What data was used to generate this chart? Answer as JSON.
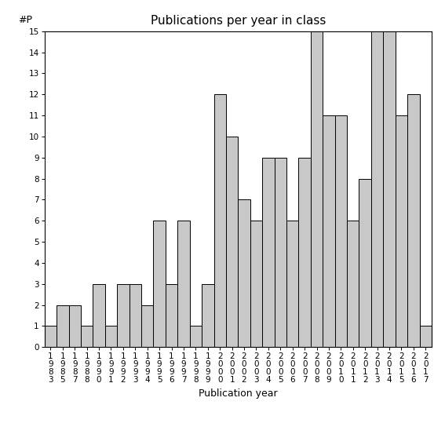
{
  "title": "Publications per year in class",
  "xlabel": "Publication year",
  "ylabel": "#P",
  "years": [
    "1983",
    "1985",
    "1987",
    "1988",
    "1990",
    "1991",
    "1992",
    "1993",
    "1994",
    "1995",
    "1996",
    "1997",
    "1998",
    "1999",
    "2000",
    "2001",
    "2002",
    "2003",
    "2004",
    "2005",
    "2006",
    "2007",
    "2008",
    "2009",
    "2010",
    "2011",
    "2012",
    "2013",
    "2014",
    "2015",
    "2016",
    "2017"
  ],
  "values": [
    1,
    2,
    2,
    1,
    3,
    1,
    3,
    3,
    2,
    6,
    3,
    6,
    1,
    3,
    12,
    10,
    7,
    6,
    9,
    9,
    6,
    9,
    15,
    11,
    11,
    6,
    8,
    15,
    15,
    11,
    12,
    1
  ],
  "bar_color": "#c8c8c8",
  "bar_edge_color": "#000000",
  "background_color": "#ffffff",
  "ylim": [
    0,
    15
  ],
  "yticks": [
    0,
    1,
    2,
    3,
    4,
    5,
    6,
    7,
    8,
    9,
    10,
    11,
    12,
    13,
    14,
    15
  ],
  "title_fontsize": 11,
  "axis_label_fontsize": 9,
  "tick_fontsize": 7.5,
  "bar_linewidth": 0.7
}
